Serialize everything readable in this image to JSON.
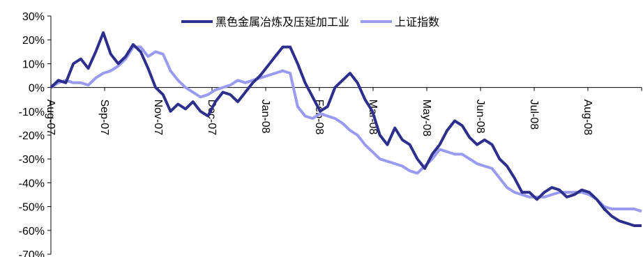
{
  "chart_data": {
    "type": "line",
    "ylim": [
      -70,
      30
    ],
    "y_ticks": [
      "30%",
      "20%",
      "10%",
      "0%",
      "-10%",
      "-20%",
      "-30%",
      "-40%",
      "-50%",
      "-60%",
      "-70%"
    ],
    "x_ticks": [
      "Aug-07",
      "Sep-07",
      "Nov-07",
      "Dec-07",
      "Jan-08",
      "Feb-08",
      "Mar-08",
      "May-08",
      "Jun-08",
      "Jul-08",
      "Aug-08"
    ],
    "legend_placement": "top",
    "grid": false,
    "series": [
      {
        "name": "黑色金属冶炼及压延加工业",
        "color": "#2e2e8c",
        "points": [
          [
            0,
            0
          ],
          [
            1,
            3
          ],
          [
            2,
            2
          ],
          [
            3,
            10
          ],
          [
            4,
            12
          ],
          [
            5,
            8
          ],
          [
            6,
            15
          ],
          [
            7,
            23
          ],
          [
            8,
            14
          ],
          [
            9,
            10
          ],
          [
            10,
            13
          ],
          [
            11,
            18
          ],
          [
            12,
            15
          ],
          [
            13,
            8
          ],
          [
            14,
            0
          ],
          [
            15,
            -3
          ],
          [
            16,
            -10
          ],
          [
            17,
            -7
          ],
          [
            18,
            -9
          ],
          [
            19,
            -6
          ],
          [
            20,
            -10
          ],
          [
            21,
            -12
          ],
          [
            22,
            -6
          ],
          [
            23,
            -2
          ],
          [
            24,
            -3
          ],
          [
            25,
            -6
          ],
          [
            26,
            -2
          ],
          [
            27,
            2
          ],
          [
            28,
            5
          ],
          [
            29,
            9
          ],
          [
            30,
            13
          ],
          [
            31,
            17
          ],
          [
            32,
            17
          ],
          [
            33,
            10
          ],
          [
            34,
            2
          ],
          [
            35,
            -4
          ],
          [
            36,
            -10
          ],
          [
            37,
            -8
          ],
          [
            38,
            0
          ],
          [
            39,
            3
          ],
          [
            40,
            6
          ],
          [
            41,
            2
          ],
          [
            42,
            -5
          ],
          [
            43,
            -10
          ],
          [
            44,
            -20
          ],
          [
            45,
            -24
          ],
          [
            46,
            -17
          ],
          [
            47,
            -22
          ],
          [
            48,
            -24
          ],
          [
            49,
            -30
          ],
          [
            50,
            -34
          ],
          [
            51,
            -28
          ],
          [
            52,
            -24
          ],
          [
            53,
            -18
          ],
          [
            54,
            -14
          ],
          [
            55,
            -16
          ],
          [
            56,
            -21
          ],
          [
            57,
            -24
          ],
          [
            58,
            -22
          ],
          [
            59,
            -24
          ],
          [
            60,
            -30
          ],
          [
            61,
            -33
          ],
          [
            62,
            -38
          ],
          [
            63,
            -44
          ],
          [
            64,
            -44
          ],
          [
            65,
            -47
          ],
          [
            66,
            -44
          ],
          [
            67,
            -42
          ],
          [
            68,
            -43
          ],
          [
            69,
            -46
          ],
          [
            70,
            -45
          ],
          [
            71,
            -43
          ],
          [
            72,
            -44
          ],
          [
            73,
            -47
          ],
          [
            74,
            -51
          ],
          [
            75,
            -54
          ],
          [
            76,
            -56
          ],
          [
            77,
            -57
          ],
          [
            78,
            -58
          ],
          [
            79,
            -58
          ]
        ]
      },
      {
        "name": "上证指数",
        "color": "#9a9af0",
        "points": [
          [
            0,
            0
          ],
          [
            1,
            2
          ],
          [
            2,
            3
          ],
          [
            3,
            2
          ],
          [
            4,
            2
          ],
          [
            5,
            1
          ],
          [
            6,
            4
          ],
          [
            7,
            6
          ],
          [
            8,
            7
          ],
          [
            9,
            9
          ],
          [
            10,
            12
          ],
          [
            11,
            17
          ],
          [
            12,
            17
          ],
          [
            13,
            13
          ],
          [
            14,
            15
          ],
          [
            15,
            14
          ],
          [
            16,
            7
          ],
          [
            17,
            3
          ],
          [
            18,
            0
          ],
          [
            19,
            -2
          ],
          [
            20,
            -4
          ],
          [
            21,
            -3
          ],
          [
            22,
            -1
          ],
          [
            23,
            0
          ],
          [
            24,
            1
          ],
          [
            25,
            3
          ],
          [
            26,
            2
          ],
          [
            27,
            3
          ],
          [
            28,
            4
          ],
          [
            29,
            5
          ],
          [
            30,
            6
          ],
          [
            31,
            7
          ],
          [
            32,
            6
          ],
          [
            33,
            -8
          ],
          [
            34,
            -12
          ],
          [
            35,
            -13
          ],
          [
            36,
            -11
          ],
          [
            37,
            -12
          ],
          [
            38,
            -13
          ],
          [
            39,
            -15
          ],
          [
            40,
            -18
          ],
          [
            41,
            -20
          ],
          [
            42,
            -24
          ],
          [
            43,
            -27
          ],
          [
            44,
            -30
          ],
          [
            45,
            -31
          ],
          [
            46,
            -32
          ],
          [
            47,
            -33
          ],
          [
            48,
            -35
          ],
          [
            49,
            -36
          ],
          [
            50,
            -33
          ],
          [
            51,
            -30
          ],
          [
            52,
            -26
          ],
          [
            53,
            -27
          ],
          [
            54,
            -28
          ],
          [
            55,
            -28
          ],
          [
            56,
            -30
          ],
          [
            57,
            -32
          ],
          [
            58,
            -33
          ],
          [
            59,
            -34
          ],
          [
            60,
            -38
          ],
          [
            61,
            -42
          ],
          [
            62,
            -44
          ],
          [
            63,
            -45
          ],
          [
            64,
            -46
          ],
          [
            65,
            -46
          ],
          [
            66,
            -46
          ],
          [
            67,
            -45
          ],
          [
            68,
            -44
          ],
          [
            69,
            -44
          ],
          [
            70,
            -44
          ],
          [
            71,
            -44
          ],
          [
            72,
            -45
          ],
          [
            73,
            -47
          ],
          [
            74,
            -50
          ],
          [
            75,
            -51
          ],
          [
            76,
            -51
          ],
          [
            77,
            -51
          ],
          [
            78,
            -51
          ],
          [
            79,
            -52
          ]
        ]
      }
    ]
  }
}
